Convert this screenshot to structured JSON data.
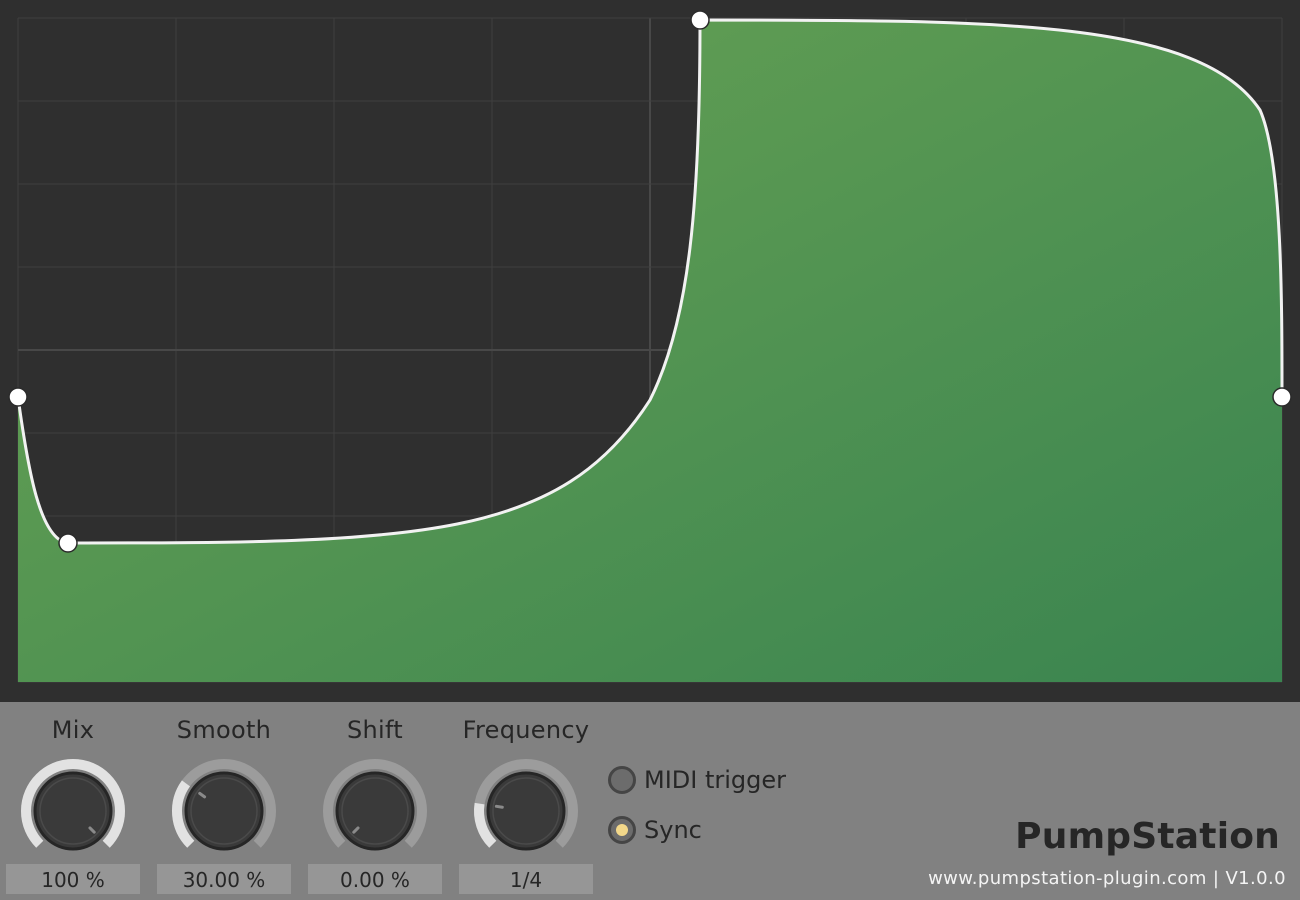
{
  "app": {
    "brand": "PumpStation",
    "footer": "www.pumpstation-plugin.com | V1.0.0"
  },
  "colors": {
    "editor_bg": "#2f2f2f",
    "grid": "#3f3f3f",
    "fill_light": "#6ba454",
    "fill_dark": "#3a8450",
    "curve": "#f2f2f2",
    "panel_bg": "#818181",
    "knob_track": "#9c9c9c",
    "knob_arc": "#e2e2e2",
    "knob_body": "#3a3a3a",
    "sync_on": "#f3d88a"
  },
  "controls": {
    "knobs": [
      {
        "id": "mix",
        "label": "Mix",
        "value_text": "100 %",
        "fraction": 1.0
      },
      {
        "id": "smooth",
        "label": "Smooth",
        "value_text": "30.00 %",
        "fraction": 0.3
      },
      {
        "id": "shift",
        "label": "Shift",
        "value_text": "0.00 %",
        "fraction": 0.0
      },
      {
        "id": "frequency",
        "label": "Frequency",
        "value_text": "1/4",
        "fraction": 0.2
      }
    ],
    "options": [
      {
        "id": "midi-trigger",
        "label": "MIDI trigger",
        "checked": false
      },
      {
        "id": "sync",
        "label": "Sync",
        "checked": true
      }
    ]
  }
}
